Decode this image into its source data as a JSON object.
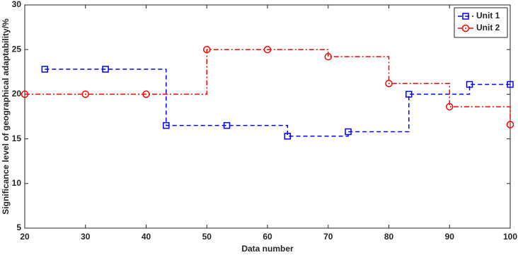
{
  "chart_data": {
    "type": "step",
    "xlabel": "Data number",
    "ylabel": "Significance level of geographical adaptability/%",
    "xlim": [
      20,
      100
    ],
    "xticks": [
      20,
      30,
      40,
      50,
      60,
      70,
      80,
      90,
      100
    ],
    "ylim": [
      5,
      30
    ],
    "yticks": [
      5,
      10,
      15,
      20,
      25,
      30
    ],
    "legend": "upper right",
    "series": [
      {
        "name": "Unit 1",
        "color": "#0000ff",
        "marker": "square",
        "dash": "6,4",
        "x": [
          23.3,
          33.3,
          43.3,
          53.3,
          63.3,
          73.3,
          83.3,
          93.3,
          100
        ],
        "values": [
          22.8,
          22.8,
          16.5,
          16.5,
          15.3,
          15.8,
          20.0,
          21.1,
          21.1
        ]
      },
      {
        "name": "Unit 2",
        "color": "#ff0000",
        "marker": "circle",
        "dash": "7,3,2,3",
        "x": [
          20,
          30,
          40,
          50,
          60,
          70,
          80,
          90,
          100
        ],
        "values": [
          20,
          20,
          20,
          25,
          25,
          24.2,
          21.2,
          18.6,
          16.6
        ]
      }
    ]
  }
}
